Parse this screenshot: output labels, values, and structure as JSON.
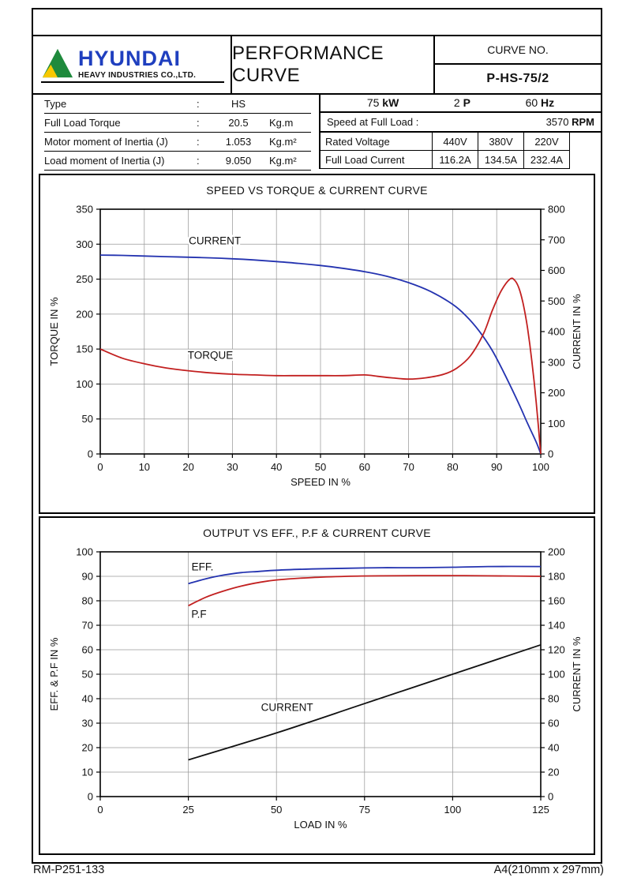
{
  "page": {
    "footer_left": "RM-P251-133",
    "footer_right": "A4(210mm x 297mm)"
  },
  "colors": {
    "logo_blue": "#1f3fbf",
    "logo_green": "#1e8a3c",
    "logo_yellow": "#f7c800",
    "curve_blue": "#2433b0",
    "curve_red": "#c22020",
    "curve_black": "#111111"
  },
  "header": {
    "logo_text": "HYUNDAI",
    "logo_subtext": "HEAVY INDUSTRIES CO.,LTD.",
    "title": "PERFORMANCE CURVE",
    "curve_no_label": "CURVE NO.",
    "curve_no_value": "P-HS-75/2"
  },
  "specs_left": {
    "rows": [
      {
        "label": "Type",
        "value": "HS",
        "unit": ""
      },
      {
        "label": "Full Load Torque",
        "value": "20.5",
        "unit": "Kg.m"
      },
      {
        "label": "Motor moment of Inertia (J)",
        "value": "1.053",
        "unit": "Kg.m²"
      },
      {
        "label": "Load moment of Inertia (J)",
        "value": "9.050",
        "unit": "Kg.m²"
      }
    ]
  },
  "specs_right": {
    "power_value": "75",
    "power_unit": "kW",
    "pole_value": "2",
    "pole_unit": "P",
    "freq_value": "60",
    "freq_unit": "Hz",
    "speed_label": "Speed at Full Load :",
    "speed_value": "3570",
    "speed_unit": "RPM",
    "table": {
      "rows": [
        [
          "Rated Voltage",
          "440V",
          "380V",
          "220V"
        ],
        [
          "Full Load Current",
          "116.2A",
          "134.5A",
          "232.4A"
        ]
      ]
    }
  },
  "chart_data": [
    {
      "type": "line",
      "title": "SPEED VS TORQUE & CURRENT CURVE",
      "xlabel": "SPEED IN %",
      "ylabel_left": "TORQUE IN %",
      "ylabel_right": "CURRENT IN %",
      "xlim": [
        0,
        100
      ],
      "xticks": [
        0,
        10,
        20,
        30,
        40,
        50,
        60,
        70,
        80,
        90,
        100
      ],
      "ylim_left": [
        0,
        350
      ],
      "yticks_left": [
        0,
        50,
        100,
        150,
        200,
        250,
        300,
        350
      ],
      "ylim_right": [
        0,
        800
      ],
      "yticks_right": [
        0,
        100,
        200,
        300,
        400,
        500,
        600,
        700,
        800
      ],
      "grid": true,
      "series": [
        {
          "name": "CURRENT",
          "axis": "right",
          "color": "#2433b0",
          "points": [
            [
              0,
              650
            ],
            [
              5,
              649
            ],
            [
              10,
              647
            ],
            [
              15,
              645
            ],
            [
              20,
              643
            ],
            [
              25,
              641
            ],
            [
              30,
              638
            ],
            [
              35,
              634
            ],
            [
              40,
              629
            ],
            [
              45,
              623
            ],
            [
              50,
              616
            ],
            [
              55,
              607
            ],
            [
              60,
              596
            ],
            [
              65,
              581
            ],
            [
              70,
              560
            ],
            [
              75,
              531
            ],
            [
              80,
              489
            ],
            [
              83,
              452
            ],
            [
              86,
              402
            ],
            [
              89,
              338
            ],
            [
              92,
              255
            ],
            [
              95,
              165
            ],
            [
              97,
              100
            ],
            [
              99,
              38
            ],
            [
              100,
              0
            ]
          ]
        },
        {
          "name": "TORQUE",
          "axis": "left",
          "color": "#c22020",
          "points": [
            [
              0,
              150
            ],
            [
              5,
              137
            ],
            [
              10,
              129
            ],
            [
              15,
              123
            ],
            [
              20,
              119
            ],
            [
              25,
              116
            ],
            [
              30,
              114
            ],
            [
              35,
              113
            ],
            [
              40,
              112
            ],
            [
              45,
              112
            ],
            [
              50,
              112
            ],
            [
              55,
              112
            ],
            [
              60,
              113
            ],
            [
              63,
              111
            ],
            [
              66,
              109
            ],
            [
              70,
              107
            ],
            [
              74,
              109
            ],
            [
              78,
              114
            ],
            [
              81,
              123
            ],
            [
              84,
              140
            ],
            [
              87,
              172
            ],
            [
              89,
              205
            ],
            [
              91,
              233
            ],
            [
              93,
              250
            ],
            [
              94,
              249
            ],
            [
              95,
              238
            ],
            [
              96,
              215
            ],
            [
              97,
              180
            ],
            [
              98,
              132
            ],
            [
              99,
              72
            ],
            [
              100,
              0
            ]
          ]
        }
      ],
      "annotations": [
        {
          "text": "CURRENT",
          "x": 26,
          "y": 300
        },
        {
          "text": "TORQUE",
          "x": 25,
          "y": 136
        }
      ]
    },
    {
      "type": "line",
      "title": "OUTPUT VS EFF., P.F & CURRENT CURVE",
      "xlabel": "LOAD IN %",
      "ylabel_left": "EFF. & P.F IN %",
      "ylabel_right": "CURRENT IN %",
      "xlim": [
        0,
        125
      ],
      "xticks": [
        0,
        25,
        50,
        75,
        100,
        125
      ],
      "ylim_left": [
        0,
        100
      ],
      "yticks_left": [
        0,
        10,
        20,
        30,
        40,
        50,
        60,
        70,
        80,
        90,
        100
      ],
      "ylim_right": [
        0,
        200
      ],
      "yticks_right": [
        0,
        20,
        40,
        60,
        80,
        100,
        120,
        140,
        160,
        180,
        200
      ],
      "grid": true,
      "series": [
        {
          "name": "EFF.",
          "axis": "left",
          "color": "#2433b0",
          "points": [
            [
              25,
              87
            ],
            [
              30,
              89
            ],
            [
              35,
              90.5
            ],
            [
              40,
              91.5
            ],
            [
              45,
              92
            ],
            [
              50,
              92.5
            ],
            [
              60,
              93
            ],
            [
              70,
              93.3
            ],
            [
              80,
              93.5
            ],
            [
              90,
              93.5
            ],
            [
              100,
              93.7
            ],
            [
              110,
              94
            ],
            [
              125,
              94
            ]
          ]
        },
        {
          "name": "P.F",
          "axis": "left",
          "color": "#c22020",
          "points": [
            [
              25,
              78
            ],
            [
              30,
              81.5
            ],
            [
              35,
              84
            ],
            [
              40,
              86
            ],
            [
              45,
              87.5
            ],
            [
              50,
              88.5
            ],
            [
              60,
              89.5
            ],
            [
              70,
              90
            ],
            [
              80,
              90.2
            ],
            [
              90,
              90.3
            ],
            [
              100,
              90.3
            ],
            [
              110,
              90.2
            ],
            [
              125,
              90
            ]
          ]
        },
        {
          "name": "CURRENT",
          "axis": "right",
          "color": "#111111",
          "points": [
            [
              25,
              30
            ],
            [
              50,
              52
            ],
            [
              75,
              76
            ],
            [
              100,
              100
            ],
            [
              125,
              124
            ]
          ]
        }
      ],
      "annotations": [
        {
          "text": "EFF.",
          "x": 29,
          "y": 92.5
        },
        {
          "text": "P.F",
          "x": 28,
          "y": 73
        },
        {
          "text": "CURRENT",
          "x": 53,
          "y": 35
        }
      ]
    }
  ]
}
